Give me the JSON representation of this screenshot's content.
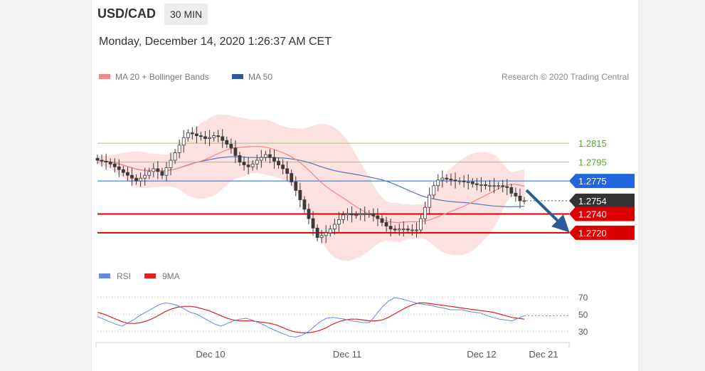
{
  "header": {
    "symbol": "USD/CAD",
    "timeframe": "30 MIN",
    "datetime": "Monday, December 14, 2020 1:26:37 AM CET"
  },
  "legend": {
    "ma20_label": "MA 20 + Bollinger Bands",
    "ma50_label": "MA 50",
    "credit": "Research © 2020 Trading Central",
    "rsi_label": "RSI",
    "rsi_ma_label": "9MA"
  },
  "colors": {
    "candle": "#3a3a3a",
    "ma20": "#f08a8a",
    "bollinger_fill": "#fde0e0",
    "ma50": "#5577bb",
    "green_level": "#99cc66",
    "blue_level": "#2266dd",
    "red_level": "#dd0000",
    "price_tag": "#333333",
    "arrow": "#2a5a9a",
    "rsi": "#6688dd",
    "rsi_ma": "#dd2222"
  },
  "chart_data": [
    {
      "type": "candlestick",
      "title": "USD/CAD",
      "ylim": [
        1.2695,
        1.2865
      ],
      "x_ticks": [
        "Dec 10",
        "Dec 11",
        "Dec 12",
        "Dec 21"
      ],
      "close": [
        1.2797,
        1.2796,
        1.2795,
        1.2793,
        1.279,
        1.2787,
        1.2784,
        1.2781,
        1.2778,
        1.2775,
        1.2778,
        1.2781,
        1.2785,
        1.2788,
        1.2785,
        1.2781,
        1.2789,
        1.2797,
        1.2805,
        1.2813,
        1.2821,
        1.2826,
        1.2825,
        1.2823,
        1.2822,
        1.282,
        1.2821,
        1.2823,
        1.2822,
        1.2818,
        1.2814,
        1.281,
        1.2802,
        1.2795,
        1.2792,
        1.279,
        1.2793,
        1.2797,
        1.28,
        1.2803,
        1.28,
        1.2796,
        1.2792,
        1.2788,
        1.2783,
        1.2774,
        1.2765,
        1.2755,
        1.2745,
        1.2735,
        1.2725,
        1.2715,
        1.2717,
        1.272,
        1.2724,
        1.2729,
        1.2734,
        1.2739,
        1.274,
        1.2739,
        1.2739,
        1.274,
        1.274,
        1.274,
        1.2738,
        1.2735,
        1.2731,
        1.2727,
        1.2724,
        1.2723,
        1.2724,
        1.2724,
        1.2723,
        1.2723,
        1.2723,
        1.2735,
        1.2747,
        1.276,
        1.277,
        1.2776,
        1.2778,
        1.2777,
        1.2776,
        1.2775,
        1.2775,
        1.2774,
        1.2774,
        1.2772,
        1.2771,
        1.2771,
        1.277,
        1.277,
        1.277,
        1.277,
        1.2769,
        1.2768,
        1.2762,
        1.2759,
        1.2754,
        1.2754
      ],
      "levels": [
        {
          "label": "1.2815",
          "value": 1.2815,
          "style": "resistance"
        },
        {
          "label": "1.2795",
          "value": 1.2795,
          "style": "resistance"
        },
        {
          "label": "1.2775",
          "value": 1.2775,
          "style": "pivot"
        },
        {
          "label": "1.2754",
          "value": 1.2754,
          "style": "last"
        },
        {
          "label": "1.2740",
          "value": 1.274,
          "style": "support"
        },
        {
          "label": "1.2720",
          "value": 1.272,
          "style": "support"
        }
      ]
    },
    {
      "type": "line",
      "title": "RSI",
      "ylim": [
        20,
        80
      ],
      "y_ticks": [
        "70",
        "50",
        "30"
      ],
      "series": [
        {
          "name": "RSI",
          "values": [
            47,
            44,
            41,
            38,
            36,
            40,
            44,
            49,
            53,
            57,
            61,
            63,
            62,
            60,
            56,
            52,
            50,
            46,
            42,
            38,
            36,
            39,
            42,
            44,
            45,
            43,
            40,
            37,
            33,
            30,
            27,
            24,
            23,
            25,
            29,
            35,
            41,
            45,
            46,
            45,
            44,
            42,
            41,
            40,
            40,
            49,
            58,
            65,
            69,
            68,
            66,
            64,
            62,
            61,
            60,
            58,
            57,
            55,
            55,
            55,
            53,
            52,
            51,
            48,
            46,
            44,
            43,
            42,
            45,
            48
          ]
        },
        {
          "name": "9MA",
          "values": [
            52,
            50,
            47,
            44,
            41,
            39,
            39,
            40,
            42,
            45,
            49,
            53,
            56,
            58,
            59,
            59,
            58,
            56,
            54,
            51,
            48,
            45,
            43,
            42,
            42,
            42,
            41,
            40,
            39,
            37,
            34,
            31,
            29,
            28,
            28,
            29,
            31,
            34,
            38,
            41,
            43,
            44,
            44,
            43,
            42,
            42,
            43,
            46,
            50,
            54,
            58,
            61,
            63,
            63,
            62,
            61,
            60,
            59,
            58,
            57,
            56,
            55,
            54,
            53,
            52,
            50,
            48,
            46,
            45,
            44
          ]
        }
      ]
    }
  ]
}
